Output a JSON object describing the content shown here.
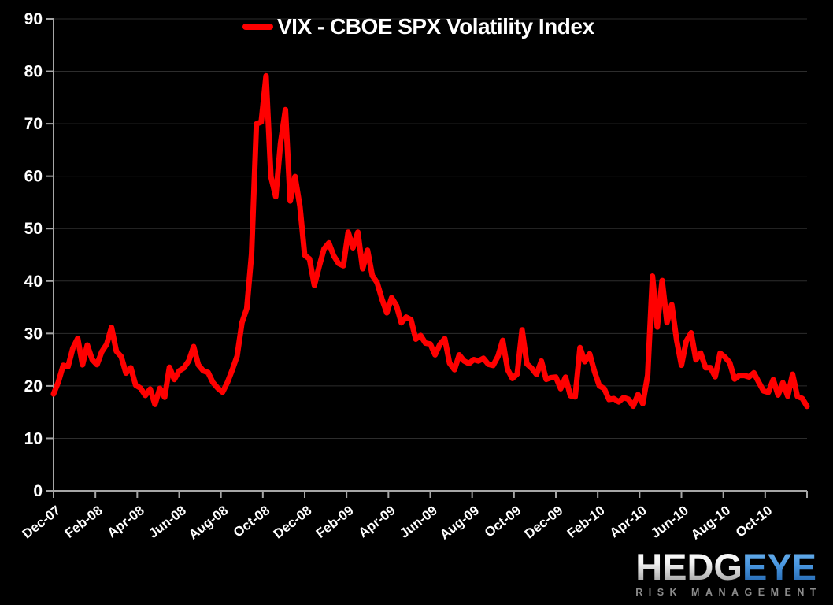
{
  "title": {
    "legend_label": "VIX - CBOE SPX Volatility Index"
  },
  "logo": {
    "brand_part1": "HEDG",
    "brand_part2": "EYE",
    "tagline": "RISK MANAGEMENT"
  },
  "colors": {
    "background": "#000000",
    "line": "#ff0000",
    "gridline": "#2d2d2d",
    "axis": "#a6a6a6",
    "label": "#ffffff",
    "logo_blue": "#4a97e0",
    "logo_silver": "#e8e8e8",
    "tagline_gray": "#8c8c8c"
  },
  "chart_data": {
    "type": "line",
    "title": "VIX - CBOE SPX Volatility Index",
    "series": [
      {
        "name": "VIX - CBOE SPX Volatility Index",
        "color": "#ff0000"
      }
    ],
    "xlabel": "",
    "ylabel": "",
    "ylim": [
      0,
      90
    ],
    "ytick_step": 10,
    "ytick_labels": [
      "0",
      "10",
      "20",
      "30",
      "40",
      "50",
      "60",
      "70",
      "80",
      "90"
    ],
    "xtick_labels": [
      "Dec-07",
      "Feb-08",
      "Apr-08",
      "Jun-08",
      "Aug-08",
      "Oct-08",
      "Dec-08",
      "Feb-09",
      "Apr-09",
      "Jun-09",
      "Aug-09",
      "Oct-09",
      "Dec-09",
      "Feb-10",
      "Apr-10",
      "Jun-10",
      "Aug-10",
      "Oct-10"
    ],
    "grid": "horizontal",
    "legend_position": "top-center",
    "frequency": "weekly",
    "dates": [
      "2007-12-21",
      "2007-12-28",
      "2008-01-04",
      "2008-01-11",
      "2008-01-18",
      "2008-01-25",
      "2008-02-01",
      "2008-02-08",
      "2008-02-15",
      "2008-02-22",
      "2008-02-29",
      "2008-03-07",
      "2008-03-14",
      "2008-03-20",
      "2008-03-28",
      "2008-04-04",
      "2008-04-11",
      "2008-04-18",
      "2008-04-25",
      "2008-05-02",
      "2008-05-09",
      "2008-05-16",
      "2008-05-23",
      "2008-05-30",
      "2008-06-06",
      "2008-06-13",
      "2008-06-20",
      "2008-06-27",
      "2008-07-03",
      "2008-07-11",
      "2008-07-18",
      "2008-07-25",
      "2008-08-01",
      "2008-08-08",
      "2008-08-15",
      "2008-08-22",
      "2008-08-29",
      "2008-09-05",
      "2008-09-12",
      "2008-09-19",
      "2008-09-26",
      "2008-10-03",
      "2008-10-10",
      "2008-10-17",
      "2008-10-24",
      "2008-10-31",
      "2008-11-07",
      "2008-11-14",
      "2008-11-21",
      "2008-11-28",
      "2008-12-05",
      "2008-12-12",
      "2008-12-19",
      "2008-12-26",
      "2009-01-02",
      "2009-01-09",
      "2009-01-16",
      "2009-01-23",
      "2009-01-30",
      "2009-02-06",
      "2009-02-13",
      "2009-02-20",
      "2009-02-27",
      "2009-03-06",
      "2009-03-13",
      "2009-03-20",
      "2009-03-27",
      "2009-04-03",
      "2009-04-09",
      "2009-04-17",
      "2009-04-24",
      "2009-05-01",
      "2009-05-08",
      "2009-05-15",
      "2009-05-22",
      "2009-05-29",
      "2009-06-05",
      "2009-06-12",
      "2009-06-19",
      "2009-06-26",
      "2009-07-02",
      "2009-07-10",
      "2009-07-17",
      "2009-07-24",
      "2009-07-31",
      "2009-08-07",
      "2009-08-14",
      "2009-08-21",
      "2009-08-28",
      "2009-09-04",
      "2009-09-11",
      "2009-09-18",
      "2009-09-25",
      "2009-10-02",
      "2009-10-09",
      "2009-10-16",
      "2009-10-23",
      "2009-10-30",
      "2009-11-06",
      "2009-11-13",
      "2009-11-20",
      "2009-11-27",
      "2009-12-04",
      "2009-12-11",
      "2009-12-18",
      "2009-12-24",
      "2009-12-31",
      "2010-01-08",
      "2010-01-15",
      "2010-01-22",
      "2010-01-29",
      "2010-02-05",
      "2010-02-12",
      "2010-02-19",
      "2010-02-26",
      "2010-03-05",
      "2010-03-12",
      "2010-03-19",
      "2010-03-26",
      "2010-04-01",
      "2010-04-09",
      "2010-04-16",
      "2010-04-23",
      "2010-04-30",
      "2010-05-07",
      "2010-05-14",
      "2010-05-21",
      "2010-05-28",
      "2010-06-04",
      "2010-06-11",
      "2010-06-18",
      "2010-06-25",
      "2010-07-02",
      "2010-07-09",
      "2010-07-16",
      "2010-07-23",
      "2010-07-30",
      "2010-08-06",
      "2010-08-13",
      "2010-08-20",
      "2010-08-27",
      "2010-09-03",
      "2010-09-10",
      "2010-09-17",
      "2010-09-24",
      "2010-10-01",
      "2010-10-08",
      "2010-10-15",
      "2010-10-22",
      "2010-10-29",
      "2010-11-05",
      "2010-11-12",
      "2010-11-19",
      "2010-11-26",
      "2010-12-03",
      "2010-12-10",
      "2010-12-17"
    ],
    "values": [
      18.47,
      20.74,
      23.94,
      23.68,
      27.18,
      29.08,
      24.02,
      27.79,
      25.02,
      24.06,
      26.54,
      27.95,
      31.16,
      26.62,
      25.61,
      22.45,
      23.46,
      20.13,
      19.6,
      18.18,
      19.4,
      16.47,
      19.55,
      17.83,
      23.56,
      21.23,
      22.87,
      23.44,
      24.81,
      27.49,
      24.0,
      22.89,
      22.57,
      20.66,
      19.58,
      18.81,
      20.65,
      23.06,
      25.66,
      32.07,
      34.74,
      45.14,
      69.95,
      70.33,
      79.13,
      59.89,
      56.1,
      66.31,
      72.67,
      55.28,
      59.93,
      54.28,
      44.93,
      44.22,
      39.19,
      42.82,
      46.11,
      47.28,
      44.84,
      43.37,
      42.93,
      49.33,
      46.35,
      49.33,
      42.36,
      45.89,
      41.04,
      39.7,
      36.53,
      33.94,
      36.82,
      35.3,
      32.05,
      33.12,
      32.63,
      28.92,
      29.62,
      28.15,
      27.99,
      25.93,
      27.95,
      29.02,
      24.34,
      23.09,
      25.92,
      24.76,
      24.27,
      25.01,
      24.76,
      25.26,
      24.15,
      23.92,
      25.61,
      28.68,
      23.12,
      21.43,
      22.27,
      30.69,
      24.2,
      23.36,
      22.19,
      24.74,
      21.25,
      21.59,
      21.68,
      19.47,
      21.68,
      18.13,
      17.91,
      27.31,
      24.62,
      26.11,
      22.73,
      20.02,
      19.5,
      17.42,
      17.58,
      16.97,
      17.77,
      17.47,
      16.14,
      18.36,
      16.62,
      22.05,
      40.95,
      31.24,
      40.1,
      32.07,
      35.48,
      28.74,
      23.95,
      28.53,
      30.12,
      24.98,
      26.25,
      23.47,
      23.5,
      21.74,
      26.25,
      25.49,
      24.45,
      21.31,
      21.99,
      22.01,
      21.71,
      22.5,
      20.71,
      19.03,
      18.78,
      21.2,
      18.26,
      20.61,
      18.04,
      22.22,
      18.01,
      17.61,
      16.11
    ]
  }
}
